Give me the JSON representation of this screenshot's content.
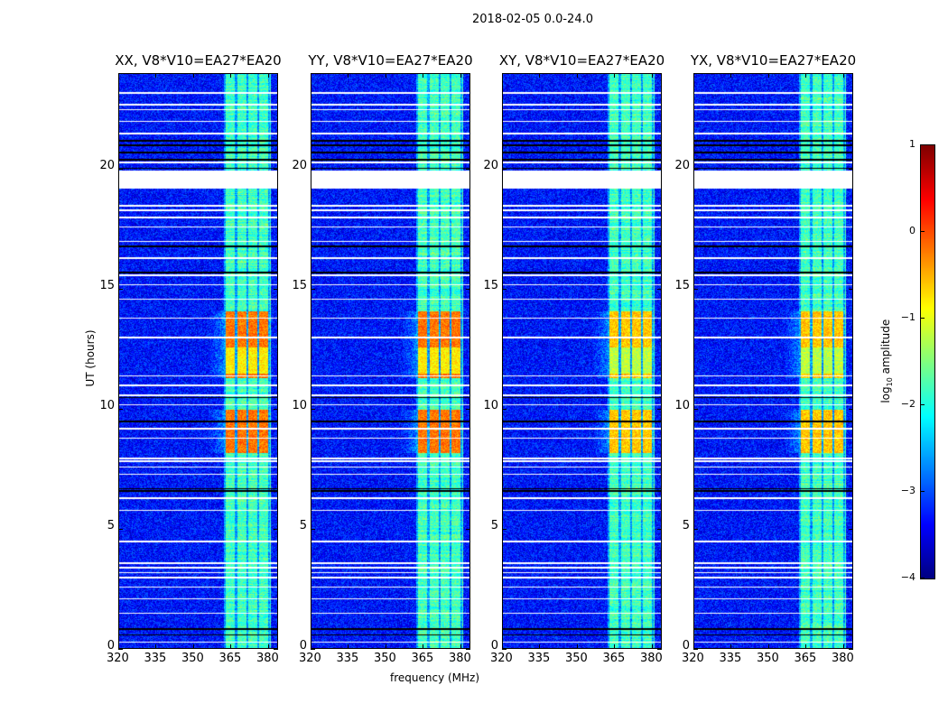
{
  "chart_data": {
    "type": "heatmap",
    "title": "2018-02-05 0.0-24.0",
    "xlabel": "frequency (MHz)",
    "ylabel": "UT (hours)",
    "xlim": [
      320,
      384
    ],
    "ylim": [
      0,
      24
    ],
    "xticks": [
      "320",
      "335",
      "350",
      "365",
      "380"
    ],
    "yticks": [
      "0",
      "5",
      "10",
      "15",
      "20"
    ],
    "panels": [
      {
        "title": "XX, V8*V10=EA27*EA20"
      },
      {
        "title": "YY, V8*V10=EA27*EA20"
      },
      {
        "title": "XY, V8*V10=EA27*EA20"
      },
      {
        "title": "YX, V8*V10=EA27*EA20"
      }
    ],
    "colorbar": {
      "label_main": "log",
      "label_sub": "10",
      "label_tail": " amplitude",
      "range": [
        -4,
        1
      ],
      "ticks": [
        "1",
        "0",
        "−1",
        "−2",
        "−3",
        "−4"
      ],
      "colormap": "jet"
    },
    "features": {
      "background_log_amp": -3.3,
      "rfi_band_mhz": [
        362,
        381
      ],
      "rfi_band_log_amp": -1.8,
      "strong_rfi_hours": [
        [
          8.2,
          10.0
        ],
        [
          11.3,
          14.1
        ]
      ],
      "strong_rfi_log_amp": -0.2,
      "flagged_block_hours": [
        19.2,
        19.95
      ]
    }
  }
}
